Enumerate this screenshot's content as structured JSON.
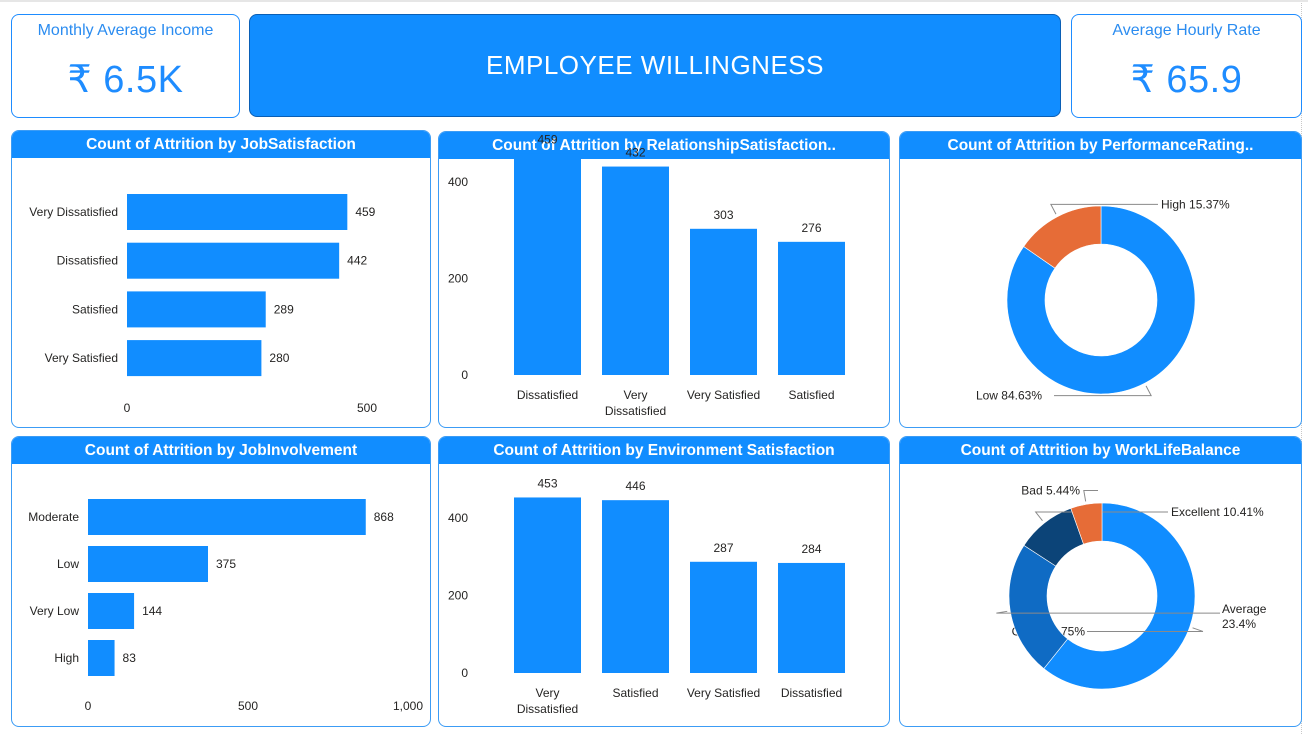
{
  "dashboard": {
    "title": "EMPLOYEE WILLINGNESS",
    "kpis": {
      "income": {
        "label": "Monthly Average Income",
        "value": "₹ 6.5K"
      },
      "rate": {
        "label": "Average Hourly Rate",
        "value": "₹ 65.9"
      }
    },
    "colors": {
      "primary": "#118dff",
      "accent": "#e66c37",
      "dark_blue": "#12239e",
      "mid_blue": "#0f6bc4",
      "navy": "#0c4478"
    }
  },
  "chart_data": [
    {
      "id": "job_satisfaction",
      "type": "bar",
      "orientation": "horizontal",
      "title": "Count of Attrition by JobSatisfaction",
      "categories": [
        "Very Dissatisfied",
        "Dissatisfied",
        "Satisfied",
        "Very Satisfied"
      ],
      "values": [
        459,
        442,
        289,
        280
      ],
      "value_labels": [
        "459",
        "442",
        "289",
        "280"
      ],
      "xlim": [
        0,
        500
      ],
      "xticks": [
        "0",
        "500"
      ],
      "color": "#118dff"
    },
    {
      "id": "relationship_satisfaction",
      "type": "bar",
      "orientation": "vertical",
      "title": "Count of Attrition by RelationshipSatisfaction..",
      "categories": [
        "Dissatisfied",
        "Very Dissatisfied",
        "Very Satisfied",
        "Satisfied"
      ],
      "values": [
        459,
        432,
        303,
        276
      ],
      "value_labels": [
        "459",
        "432",
        "303",
        "276"
      ],
      "ylim": [
        0,
        480
      ],
      "yticks": [
        "0",
        "200",
        "400"
      ],
      "color": "#118dff"
    },
    {
      "id": "performance_rating",
      "type": "pie",
      "donut": true,
      "title": "Count of Attrition by PerformanceRating..",
      "slices": [
        {
          "label": "Low 84.63%",
          "value": 84.63,
          "color": "#118dff"
        },
        {
          "label": "High 15.37%",
          "value": 15.37,
          "color": "#e66c37"
        }
      ]
    },
    {
      "id": "job_involvement",
      "type": "bar",
      "orientation": "horizontal",
      "title": "Count of Attrition by JobInvolvement",
      "categories": [
        "Moderate",
        "Low",
        "Very Low",
        "High"
      ],
      "values": [
        868,
        375,
        144,
        83
      ],
      "value_labels": [
        "868",
        "375",
        "144",
        "83"
      ],
      "xlim": [
        0,
        1000
      ],
      "xticks": [
        "0",
        "500",
        "1,000"
      ],
      "color": "#118dff"
    },
    {
      "id": "environment_satisfaction",
      "type": "bar",
      "orientation": "vertical",
      "title": "Count of Attrition by Environment Satisfaction",
      "categories": [
        "Very Dissatisfied",
        "Satisfied",
        "Very Satisfied",
        "Dissatisfied"
      ],
      "values": [
        453,
        446,
        287,
        284
      ],
      "value_labels": [
        "453",
        "446",
        "287",
        "284"
      ],
      "ylim": [
        0,
        472
      ],
      "yticks": [
        "0",
        "200",
        "400"
      ],
      "color": "#118dff"
    },
    {
      "id": "work_life_balance",
      "type": "pie",
      "donut": true,
      "title": "Count of Attrition by WorkLifeBalance",
      "slices": [
        {
          "label": "Good 60.75%",
          "value": 60.75,
          "color": "#118dff"
        },
        {
          "label": "Average 23.4%",
          "value": 23.4,
          "color": "#0f6bc4"
        },
        {
          "label": "Excellent 10.41%",
          "value": 10.41,
          "color": "#0c4478"
        },
        {
          "label": "Bad 5.44%",
          "value": 5.44,
          "color": "#e66c37"
        }
      ]
    }
  ]
}
